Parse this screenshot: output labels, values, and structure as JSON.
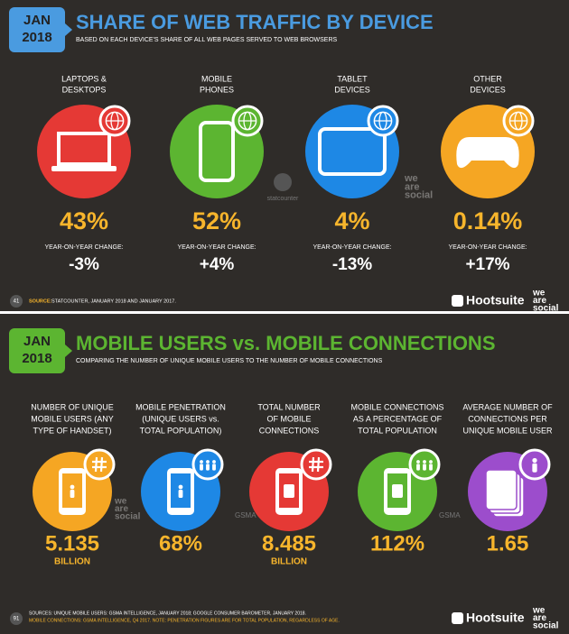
{
  "slides": [
    {
      "badge": {
        "month": "JAN",
        "year": "2018"
      },
      "title": "SHARE OF WEB TRAFFIC BY DEVICE",
      "subtitle": "BASED ON EACH DEVICE'S SHARE OF ALL WEB PAGES SERVED TO WEB BROWSERS",
      "items": [
        {
          "label": [
            "LAPTOPS &",
            "DESKTOPS"
          ],
          "value": "43%",
          "change_label": "YEAR-ON-YEAR CHANGE:",
          "change": "-3%"
        },
        {
          "label": [
            "MOBILE",
            "PHONES"
          ],
          "value": "52%",
          "change_label": "YEAR-ON-YEAR CHANGE:",
          "change": "+4%"
        },
        {
          "label": [
            "TABLET",
            "DEVICES"
          ],
          "value": "4%",
          "change_label": "YEAR-ON-YEAR CHANGE:",
          "change": "-13%"
        },
        {
          "label": [
            "OTHER",
            "DEVICES"
          ],
          "value": "0.14%",
          "change_label": "YEAR-ON-YEAR CHANGE:",
          "change": "+17%"
        }
      ],
      "watermarks": {
        "statcounter": "statcounter",
        "we_are_social": [
          "we",
          "are",
          "social"
        ]
      },
      "page": "41",
      "source": {
        "prefix": "SOURCE:",
        "text": "STATCOUNTER, JANUARY 2018 AND JANUARY 2017."
      },
      "brand": {
        "hootsuite": "Hootsuite",
        "we_are_social": [
          "we",
          "are",
          "social"
        ]
      }
    },
    {
      "badge": {
        "month": "JAN",
        "year": "2018"
      },
      "title": "MOBILE USERS vs. MOBILE CONNECTIONS",
      "subtitle": "COMPARING THE NUMBER OF UNIQUE MOBILE USERS TO THE NUMBER OF MOBILE CONNECTIONS",
      "items": [
        {
          "label": [
            "NUMBER OF UNIQUE",
            "MOBILE USERS (ANY",
            "TYPE OF HANDSET)"
          ],
          "value": "5.135",
          "unit": "BILLION"
        },
        {
          "label": [
            "MOBILE PENETRATION",
            "(UNIQUE USERS vs.",
            "TOTAL POPULATION)"
          ],
          "value": "68%"
        },
        {
          "label": [
            "TOTAL NUMBER",
            "OF MOBILE",
            "CONNECTIONS"
          ],
          "value": "8.485",
          "unit": "BILLION"
        },
        {
          "label": [
            "MOBILE CONNECTIONS",
            "AS A PERCENTAGE OF",
            "TOTAL POPULATION"
          ],
          "value": "112%"
        },
        {
          "label": [
            "AVERAGE NUMBER OF",
            "CONNECTIONS PER",
            "UNIQUE MOBILE USER"
          ],
          "value": "1.65"
        }
      ],
      "watermarks": {
        "gsma": "GSMA",
        "we_are_social": [
          "we",
          "are",
          "social"
        ]
      },
      "page": "91",
      "source": {
        "lines": [
          "SOURCES: UNIQUE MOBILE USERS: GSMA INTELLIGENCE, JANUARY 2018; GOOGLE CONSUMER BAROMETER, JANUARY 2018.",
          "MOBILE CONNECTIONS: GSMA INTELLIGENCE, Q4 2017. NOTE: PENETRATION FIGURES ARE FOR TOTAL POPULATION, REGARDLESS OF AGE."
        ]
      },
      "brand": {
        "hootsuite": "Hootsuite",
        "we_are_social": [
          "we",
          "are",
          "social"
        ]
      }
    }
  ]
}
